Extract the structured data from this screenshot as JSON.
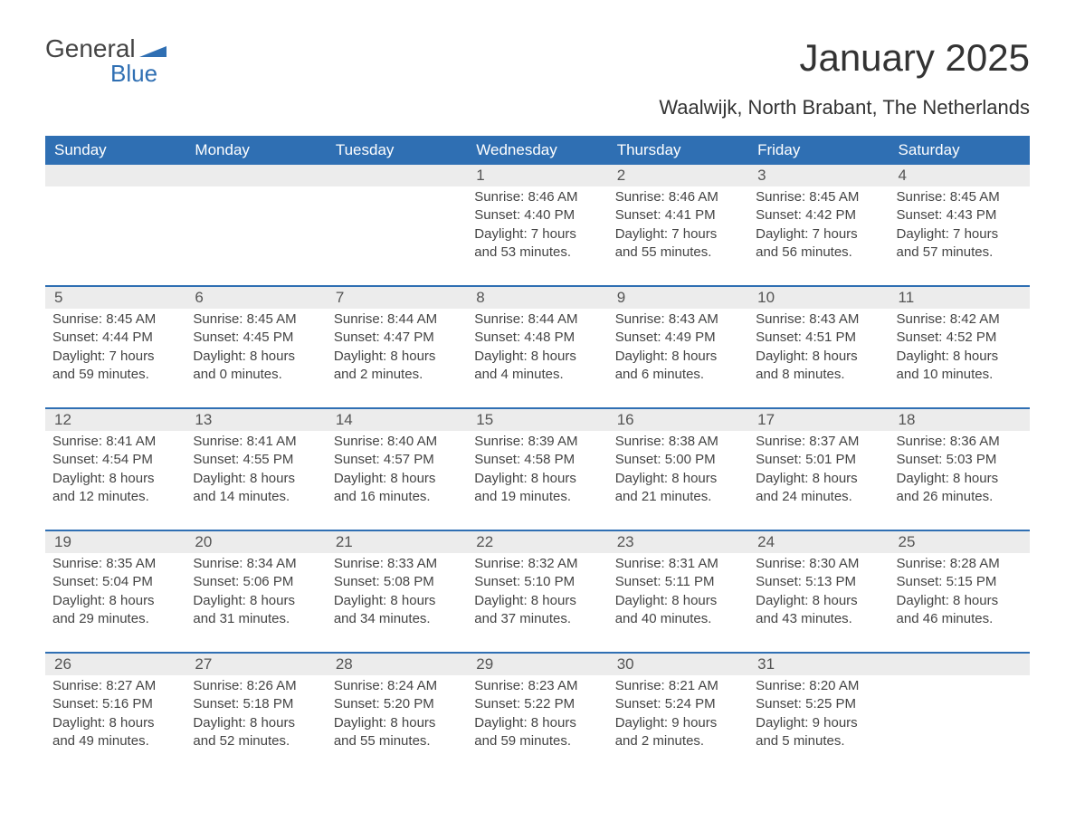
{
  "brand": {
    "line1": "General",
    "line2": "Blue",
    "flag_color": "#2f6fb3"
  },
  "title": "January 2025",
  "location": "Waalwijk, North Brabant, The Netherlands",
  "header_bg": "#2f6fb3",
  "header_fg": "#ffffff",
  "daynum_bg": "#ececec",
  "row_border_color": "#2f6fb3",
  "text_color": "#444444",
  "days_of_week": [
    "Sunday",
    "Monday",
    "Tuesday",
    "Wednesday",
    "Thursday",
    "Friday",
    "Saturday"
  ],
  "weeks": [
    [
      null,
      null,
      null,
      {
        "n": "1",
        "sunrise": "8:46 AM",
        "sunset": "4:40 PM",
        "dl1": "7 hours",
        "dl2": "and 53 minutes."
      },
      {
        "n": "2",
        "sunrise": "8:46 AM",
        "sunset": "4:41 PM",
        "dl1": "7 hours",
        "dl2": "and 55 minutes."
      },
      {
        "n": "3",
        "sunrise": "8:45 AM",
        "sunset": "4:42 PM",
        "dl1": "7 hours",
        "dl2": "and 56 minutes."
      },
      {
        "n": "4",
        "sunrise": "8:45 AM",
        "sunset": "4:43 PM",
        "dl1": "7 hours",
        "dl2": "and 57 minutes."
      }
    ],
    [
      {
        "n": "5",
        "sunrise": "8:45 AM",
        "sunset": "4:44 PM",
        "dl1": "7 hours",
        "dl2": "and 59 minutes."
      },
      {
        "n": "6",
        "sunrise": "8:45 AM",
        "sunset": "4:45 PM",
        "dl1": "8 hours",
        "dl2": "and 0 minutes."
      },
      {
        "n": "7",
        "sunrise": "8:44 AM",
        "sunset": "4:47 PM",
        "dl1": "8 hours",
        "dl2": "and 2 minutes."
      },
      {
        "n": "8",
        "sunrise": "8:44 AM",
        "sunset": "4:48 PM",
        "dl1": "8 hours",
        "dl2": "and 4 minutes."
      },
      {
        "n": "9",
        "sunrise": "8:43 AM",
        "sunset": "4:49 PM",
        "dl1": "8 hours",
        "dl2": "and 6 minutes."
      },
      {
        "n": "10",
        "sunrise": "8:43 AM",
        "sunset": "4:51 PM",
        "dl1": "8 hours",
        "dl2": "and 8 minutes."
      },
      {
        "n": "11",
        "sunrise": "8:42 AM",
        "sunset": "4:52 PM",
        "dl1": "8 hours",
        "dl2": "and 10 minutes."
      }
    ],
    [
      {
        "n": "12",
        "sunrise": "8:41 AM",
        "sunset": "4:54 PM",
        "dl1": "8 hours",
        "dl2": "and 12 minutes."
      },
      {
        "n": "13",
        "sunrise": "8:41 AM",
        "sunset": "4:55 PM",
        "dl1": "8 hours",
        "dl2": "and 14 minutes."
      },
      {
        "n": "14",
        "sunrise": "8:40 AM",
        "sunset": "4:57 PM",
        "dl1": "8 hours",
        "dl2": "and 16 minutes."
      },
      {
        "n": "15",
        "sunrise": "8:39 AM",
        "sunset": "4:58 PM",
        "dl1": "8 hours",
        "dl2": "and 19 minutes."
      },
      {
        "n": "16",
        "sunrise": "8:38 AM",
        "sunset": "5:00 PM",
        "dl1": "8 hours",
        "dl2": "and 21 minutes."
      },
      {
        "n": "17",
        "sunrise": "8:37 AM",
        "sunset": "5:01 PM",
        "dl1": "8 hours",
        "dl2": "and 24 minutes."
      },
      {
        "n": "18",
        "sunrise": "8:36 AM",
        "sunset": "5:03 PM",
        "dl1": "8 hours",
        "dl2": "and 26 minutes."
      }
    ],
    [
      {
        "n": "19",
        "sunrise": "8:35 AM",
        "sunset": "5:04 PM",
        "dl1": "8 hours",
        "dl2": "and 29 minutes."
      },
      {
        "n": "20",
        "sunrise": "8:34 AM",
        "sunset": "5:06 PM",
        "dl1": "8 hours",
        "dl2": "and 31 minutes."
      },
      {
        "n": "21",
        "sunrise": "8:33 AM",
        "sunset": "5:08 PM",
        "dl1": "8 hours",
        "dl2": "and 34 minutes."
      },
      {
        "n": "22",
        "sunrise": "8:32 AM",
        "sunset": "5:10 PM",
        "dl1": "8 hours",
        "dl2": "and 37 minutes."
      },
      {
        "n": "23",
        "sunrise": "8:31 AM",
        "sunset": "5:11 PM",
        "dl1": "8 hours",
        "dl2": "and 40 minutes."
      },
      {
        "n": "24",
        "sunrise": "8:30 AM",
        "sunset": "5:13 PM",
        "dl1": "8 hours",
        "dl2": "and 43 minutes."
      },
      {
        "n": "25",
        "sunrise": "8:28 AM",
        "sunset": "5:15 PM",
        "dl1": "8 hours",
        "dl2": "and 46 minutes."
      }
    ],
    [
      {
        "n": "26",
        "sunrise": "8:27 AM",
        "sunset": "5:16 PM",
        "dl1": "8 hours",
        "dl2": "and 49 minutes."
      },
      {
        "n": "27",
        "sunrise": "8:26 AM",
        "sunset": "5:18 PM",
        "dl1": "8 hours",
        "dl2": "and 52 minutes."
      },
      {
        "n": "28",
        "sunrise": "8:24 AM",
        "sunset": "5:20 PM",
        "dl1": "8 hours",
        "dl2": "and 55 minutes."
      },
      {
        "n": "29",
        "sunrise": "8:23 AM",
        "sunset": "5:22 PM",
        "dl1": "8 hours",
        "dl2": "and 59 minutes."
      },
      {
        "n": "30",
        "sunrise": "8:21 AM",
        "sunset": "5:24 PM",
        "dl1": "9 hours",
        "dl2": "and 2 minutes."
      },
      {
        "n": "31",
        "sunrise": "8:20 AM",
        "sunset": "5:25 PM",
        "dl1": "9 hours",
        "dl2": "and 5 minutes."
      },
      null
    ]
  ],
  "labels": {
    "sunrise_prefix": "Sunrise: ",
    "sunset_prefix": "Sunset: ",
    "daylight_prefix": "Daylight: "
  }
}
